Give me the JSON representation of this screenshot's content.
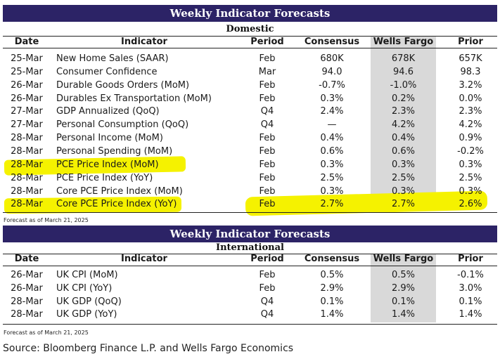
{
  "domestic": {
    "title": "Weekly Indicator Forecasts",
    "section": "Domestic",
    "headers": {
      "date": "Date",
      "indicator": "Indicator",
      "period": "Period",
      "consensus": "Consensus",
      "wells_fargo": "Wells Fargo",
      "prior": "Prior"
    },
    "rows": [
      {
        "date": "25-Mar",
        "indicator": "New Home Sales (SAAR)",
        "period": "Feb",
        "consensus": "680K",
        "wells_fargo": "678K",
        "prior": "657K"
      },
      {
        "date": "25-Mar",
        "indicator": "Consumer Confidence",
        "period": "Mar",
        "consensus": "94.0",
        "wells_fargo": "94.6",
        "prior": "98.3"
      },
      {
        "date": "26-Mar",
        "indicator": "Durable Goods Orders (MoM)",
        "period": "Feb",
        "consensus": "-0.7%",
        "wells_fargo": "-1.0%",
        "prior": "3.2%"
      },
      {
        "date": "26-Mar",
        "indicator": "Durables Ex Transportation (MoM)",
        "period": "Feb",
        "consensus": "0.3%",
        "wells_fargo": "0.2%",
        "prior": "0.0%"
      },
      {
        "date": "27-Mar",
        "indicator": "GDP Annualized (QoQ)",
        "period": "Q4",
        "consensus": "2.4%",
        "wells_fargo": "2.3%",
        "prior": "2.3%"
      },
      {
        "date": "27-Mar",
        "indicator": "Personal Consumption (QoQ)",
        "period": "Q4",
        "consensus": "—",
        "wells_fargo": "4.2%",
        "prior": "4.2%"
      },
      {
        "date": "28-Mar",
        "indicator": "Personal Income (MoM)",
        "period": "Feb",
        "consensus": "0.4%",
        "wells_fargo": "0.4%",
        "prior": "0.9%"
      },
      {
        "date": "28-Mar",
        "indicator": "Personal Spending (MoM)",
        "period": "Feb",
        "consensus": "0.6%",
        "wells_fargo": "0.6%",
        "prior": "-0.2%"
      },
      {
        "date": "28-Mar",
        "indicator": "PCE Price Index (MoM)",
        "period": "Feb",
        "consensus": "0.3%",
        "wells_fargo": "0.3%",
        "prior": "0.3%"
      },
      {
        "date": "28-Mar",
        "indicator": "PCE Price Index (YoY)",
        "period": "Feb",
        "consensus": "2.5%",
        "wells_fargo": "2.5%",
        "prior": "2.5%"
      },
      {
        "date": "28-Mar",
        "indicator": "Core PCE Price Index (MoM)",
        "period": "Feb",
        "consensus": "0.3%",
        "wells_fargo": "0.3%",
        "prior": "0.3%"
      },
      {
        "date": "28-Mar",
        "indicator": "Core PCE Price Index (YoY)",
        "period": "Feb",
        "consensus": "2.7%",
        "wells_fargo": "2.7%",
        "prior": "2.6%"
      }
    ],
    "note": "Forecast as of March 21, 2025"
  },
  "international": {
    "title": "Weekly Indicator Forecasts",
    "section": "International",
    "headers": {
      "date": "Date",
      "indicator": "Indicator",
      "period": "Period",
      "consensus": "Consensus",
      "wells_fargo": "Wells Fargo",
      "prior": "Prior"
    },
    "rows": [
      {
        "date": "26-Mar",
        "indicator": "UK CPI (MoM)",
        "period": "Feb",
        "consensus": "0.5%",
        "wells_fargo": "0.5%",
        "prior": "-0.1%"
      },
      {
        "date": "26-Mar",
        "indicator": "UK CPI (YoY)",
        "period": "Feb",
        "consensus": "2.9%",
        "wells_fargo": "2.9%",
        "prior": "3.0%"
      },
      {
        "date": "28-Mar",
        "indicator": "UK GDP (QoQ)",
        "period": "Q4",
        "consensus": "0.1%",
        "wells_fargo": "0.1%",
        "prior": "0.1%"
      },
      {
        "date": "28-Mar",
        "indicator": "UK GDP (YoY)",
        "period": "Q4",
        "consensus": "1.4%",
        "wells_fargo": "1.4%",
        "prior": "1.4%"
      }
    ],
    "note": "Forecast as of March 21, 2025"
  },
  "source": "Source: Bloomberg Finance L.P. and Wells Fargo Economics",
  "colors": {
    "banner": "#2c2366",
    "highlight": "#f5f200",
    "wells_fargo_shade": "#d9d9d9"
  }
}
